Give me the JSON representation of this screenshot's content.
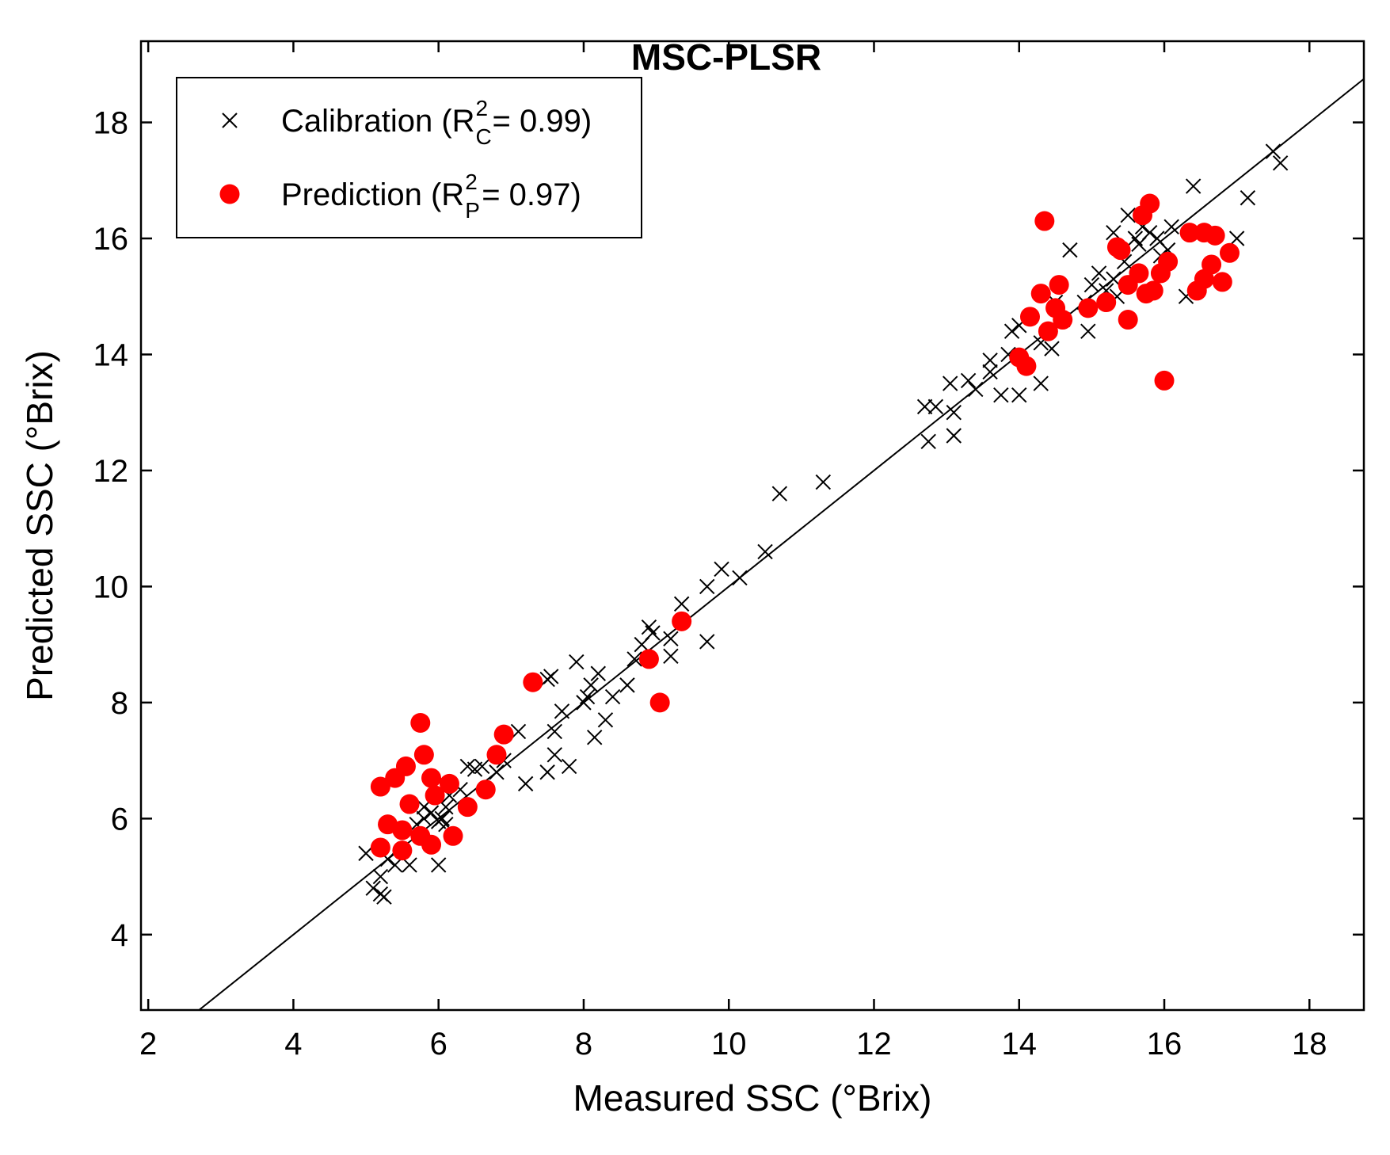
{
  "chart_data": {
    "type": "scatter",
    "title": "MSC-PLSR",
    "xlabel": "Measured SSC (°Brix)",
    "ylabel": "Predicted SSC (°Brix)",
    "xlim": [
      1.9,
      18.75
    ],
    "ylim": [
      2.7,
      19.4
    ],
    "xticks": [
      2,
      4,
      6,
      8,
      10,
      12,
      14,
      16,
      18
    ],
    "yticks": [
      4,
      6,
      8,
      10,
      12,
      14,
      16,
      18
    ],
    "grid": false,
    "legend_position": "top-left",
    "reference_line": {
      "slope": 1,
      "intercept": 0
    },
    "series": [
      {
        "name": "Calibration",
        "legend_prefix": "Calibration (R",
        "legend_sup": "2",
        "legend_sub": "C",
        "legend_suffix": " = 0.99)",
        "marker": "x",
        "color": "#000000",
        "points": [
          [
            5.0,
            5.4
          ],
          [
            5.1,
            4.8
          ],
          [
            5.2,
            5.0
          ],
          [
            5.2,
            4.7
          ],
          [
            5.25,
            4.65
          ],
          [
            5.3,
            5.3
          ],
          [
            5.4,
            5.2
          ],
          [
            5.6,
            5.2
          ],
          [
            5.7,
            5.9
          ],
          [
            5.8,
            6.2
          ],
          [
            5.8,
            6.0
          ],
          [
            5.9,
            6.1
          ],
          [
            6.0,
            5.95
          ],
          [
            6.0,
            5.2
          ],
          [
            6.05,
            6.0
          ],
          [
            6.1,
            5.9
          ],
          [
            6.1,
            6.2
          ],
          [
            6.15,
            6.4
          ],
          [
            6.3,
            6.5
          ],
          [
            6.4,
            6.9
          ],
          [
            6.5,
            6.85
          ],
          [
            6.6,
            6.9
          ],
          [
            6.8,
            6.8
          ],
          [
            6.9,
            7.0
          ],
          [
            7.1,
            7.5
          ],
          [
            7.2,
            6.6
          ],
          [
            7.5,
            6.8
          ],
          [
            7.5,
            8.4
          ],
          [
            7.55,
            8.45
          ],
          [
            7.6,
            7.5
          ],
          [
            7.6,
            7.1
          ],
          [
            7.7,
            7.85
          ],
          [
            7.8,
            6.9
          ],
          [
            7.9,
            8.7
          ],
          [
            8.0,
            8.0
          ],
          [
            8.05,
            8.1
          ],
          [
            8.1,
            8.3
          ],
          [
            8.15,
            7.4
          ],
          [
            8.2,
            8.5
          ],
          [
            8.3,
            7.7
          ],
          [
            8.4,
            8.1
          ],
          [
            8.6,
            8.3
          ],
          [
            8.7,
            8.75
          ],
          [
            8.8,
            9.0
          ],
          [
            8.9,
            9.3
          ],
          [
            8.95,
            9.2
          ],
          [
            9.2,
            8.8
          ],
          [
            9.2,
            9.1
          ],
          [
            9.35,
            9.7
          ],
          [
            9.7,
            9.05
          ],
          [
            9.7,
            10.0
          ],
          [
            9.9,
            10.3
          ],
          [
            10.15,
            10.15
          ],
          [
            10.5,
            10.6
          ],
          [
            10.7,
            11.6
          ],
          [
            11.3,
            11.8
          ],
          [
            12.7,
            13.1
          ],
          [
            12.75,
            12.5
          ],
          [
            12.85,
            13.1
          ],
          [
            13.05,
            13.5
          ],
          [
            13.1,
            13.0
          ],
          [
            13.1,
            12.6
          ],
          [
            13.3,
            13.55
          ],
          [
            13.4,
            13.4
          ],
          [
            13.6,
            13.7
          ],
          [
            13.6,
            13.9
          ],
          [
            13.75,
            13.3
          ],
          [
            13.85,
            14.0
          ],
          [
            13.9,
            14.4
          ],
          [
            14.0,
            13.3
          ],
          [
            14.0,
            14.5
          ],
          [
            14.3,
            13.5
          ],
          [
            14.3,
            14.2
          ],
          [
            14.45,
            14.1
          ],
          [
            14.5,
            14.9
          ],
          [
            14.6,
            14.6
          ],
          [
            14.7,
            15.8
          ],
          [
            14.9,
            14.9
          ],
          [
            14.95,
            14.4
          ],
          [
            15.0,
            15.2
          ],
          [
            15.1,
            15.4
          ],
          [
            15.2,
            15.1
          ],
          [
            15.3,
            15.3
          ],
          [
            15.3,
            16.1
          ],
          [
            15.35,
            15.0
          ],
          [
            15.45,
            15.6
          ],
          [
            15.5,
            16.4
          ],
          [
            15.6,
            16.0
          ],
          [
            15.65,
            15.9
          ],
          [
            15.7,
            16.2
          ],
          [
            15.8,
            16.1
          ],
          [
            15.9,
            16.0
          ],
          [
            15.95,
            15.7
          ],
          [
            16.05,
            15.8
          ],
          [
            16.1,
            16.2
          ],
          [
            16.3,
            15.0
          ],
          [
            16.4,
            16.9
          ],
          [
            17.0,
            16.0
          ],
          [
            17.15,
            16.7
          ],
          [
            17.5,
            17.5
          ],
          [
            17.6,
            17.3
          ]
        ]
      },
      {
        "name": "Prediction",
        "legend_prefix": "Prediction (R",
        "legend_sup": "2",
        "legend_sub": "P",
        "legend_suffix": " = 0.97)",
        "marker": "filled-circle",
        "color": "#ff0000",
        "points": [
          [
            5.2,
            5.5
          ],
          [
            5.2,
            6.55
          ],
          [
            5.3,
            5.9
          ],
          [
            5.4,
            6.7
          ],
          [
            5.5,
            5.45
          ],
          [
            5.55,
            6.9
          ],
          [
            5.5,
            5.8
          ],
          [
            5.6,
            6.25
          ],
          [
            5.75,
            7.65
          ],
          [
            5.8,
            7.1
          ],
          [
            5.75,
            5.7
          ],
          [
            5.9,
            5.55
          ],
          [
            5.9,
            6.7
          ],
          [
            5.95,
            6.4
          ],
          [
            6.15,
            6.6
          ],
          [
            6.2,
            5.7
          ],
          [
            6.4,
            6.2
          ],
          [
            6.65,
            6.5
          ],
          [
            6.8,
            7.1
          ],
          [
            6.9,
            7.45
          ],
          [
            7.3,
            8.35
          ],
          [
            8.9,
            8.75
          ],
          [
            9.05,
            8.0
          ],
          [
            9.35,
            9.4
          ],
          [
            14.0,
            13.95
          ],
          [
            14.1,
            13.8
          ],
          [
            14.15,
            14.65
          ],
          [
            14.3,
            15.05
          ],
          [
            14.35,
            16.3
          ],
          [
            14.4,
            14.4
          ],
          [
            14.5,
            14.8
          ],
          [
            14.55,
            15.2
          ],
          [
            14.6,
            14.6
          ],
          [
            14.95,
            14.8
          ],
          [
            15.2,
            14.9
          ],
          [
            15.35,
            15.85
          ],
          [
            15.4,
            15.8
          ],
          [
            15.5,
            14.6
          ],
          [
            15.5,
            15.2
          ],
          [
            15.65,
            15.4
          ],
          [
            15.7,
            16.4
          ],
          [
            15.75,
            15.05
          ],
          [
            15.8,
            16.6
          ],
          [
            15.85,
            15.1
          ],
          [
            15.95,
            15.4
          ],
          [
            16.0,
            13.55
          ],
          [
            16.05,
            15.6
          ],
          [
            16.35,
            16.1
          ],
          [
            16.45,
            15.1
          ],
          [
            16.55,
            15.3
          ],
          [
            16.55,
            16.1
          ],
          [
            16.65,
            15.55
          ],
          [
            16.7,
            16.05
          ],
          [
            16.8,
            15.25
          ],
          [
            16.9,
            15.75
          ]
        ]
      }
    ]
  }
}
